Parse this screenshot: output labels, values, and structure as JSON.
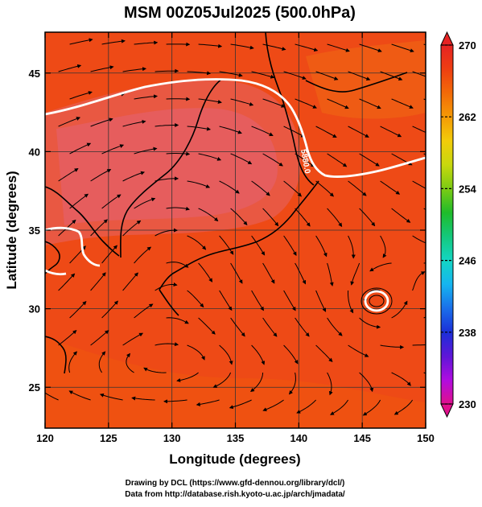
{
  "title": "MSM 00Z05Jul2025 (500.0hPa)",
  "x_axis": {
    "label": "Longitude (degrees)",
    "min": 120,
    "max": 150,
    "ticks": [
      "120",
      "125",
      "130",
      "135",
      "140",
      "145",
      "150"
    ]
  },
  "y_axis": {
    "label": "Latitude  (degrees)",
    "min": 22.4,
    "max": 47.6,
    "ticks": [
      "25",
      "30",
      "35",
      "40",
      "45"
    ]
  },
  "colorbar": {
    "min": 230,
    "max": 270,
    "labels": [
      "270",
      "262",
      "254",
      "246",
      "238",
      "230"
    ],
    "colors": [
      "#e0108c",
      "#b00ce0",
      "#5e16d8",
      "#1b2fd8",
      "#1a6fea",
      "#15b5f0",
      "#14d6c4",
      "#14c87c",
      "#1fbc2a",
      "#7ccb14",
      "#c8d80e",
      "#f2cc0a",
      "#f59a06",
      "#f26a08",
      "#ee3e12",
      "#e62323"
    ]
  },
  "contour": {
    "label": "5880.0"
  },
  "credits": {
    "line1": "Drawing by DCL (https://www.gfd-dennou.org/library/dcl/)",
    "line2": "Data from http://database.rish.kyoto-u.ac.jp/arch/jmadata/"
  },
  "colors": {
    "field_dominant": "#ee4a16",
    "field_warm_region": "#e6505e",
    "contour": "#ffffff",
    "streamline": "#000000"
  }
}
